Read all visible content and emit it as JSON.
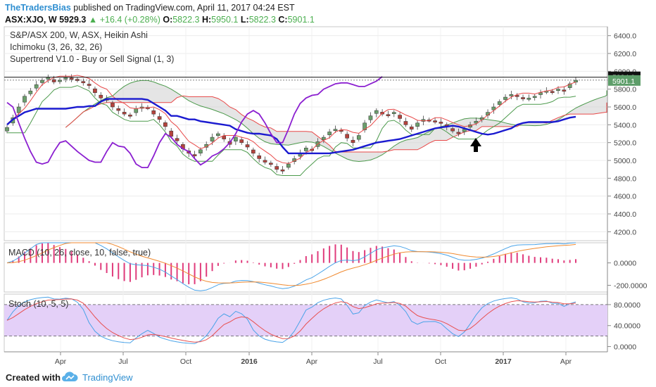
{
  "header": {
    "author": "TheTradersBias",
    "published": "published on TradingView.com, April 11, 2017 04:24 EST",
    "symbol": "ASX:XJO, W",
    "last": "5929.3",
    "arrow": "▲",
    "change": "+16.4 (+0.28%)",
    "o_label": "O:",
    "o_value": "5822.3",
    "h_label": "H:",
    "h_value": "5950.1",
    "l_label": "L:",
    "l_value": "5822.3",
    "c_label": "C:",
    "c_value": "5901.1"
  },
  "legend": {
    "title": "S&P/ASX 200, W, ASX, Heikin Ashi",
    "ichimoku": "Ichimoku (3, 26, 32, 26)",
    "supertrend": "Supertrend V1.0 - Buy or Sell Signal (1, 3)",
    "macd": "MACD (10, 26, close, 10, false, true)",
    "stoch": "Stoch (10, 5, 5)"
  },
  "footer": {
    "created_with": "Created with",
    "brand": "TradingView"
  },
  "colors": {
    "up": "#6c9f6c",
    "down": "#b5433d",
    "kijun": "#1a1ad0",
    "chikou": "#8b1fd0",
    "tenkan_red": "#e84848",
    "span_green": "#4c9a4c",
    "cloud": "#d0d0d0",
    "macd_line": "#4aa3e8",
    "signal_line": "#f08a30",
    "hist": "#e03c7c",
    "stoch_k": "#4aa3e8",
    "stoch_d": "#e85050",
    "stoch_band": "#e4d0f8",
    "price_box": "#111111",
    "close_box": "#5e9e6a"
  },
  "chart_data": {
    "type": "candlestick",
    "x_ticks": [
      "Apr",
      "Jul",
      "Oct",
      "2016",
      "Apr",
      "Jul",
      "Oct",
      "2017",
      "Apr"
    ],
    "x_ticks_bold": [
      "2016",
      "2017"
    ],
    "price_axis": {
      "ticks": [
        4200,
        4400,
        4600,
        4800,
        5000,
        5200,
        5400,
        5600,
        5800,
        6000,
        6200,
        6400
      ],
      "range": [
        4100,
        6500
      ]
    },
    "price_labels": [
      "6400.0",
      "6200.0",
      "6000.0",
      "5800.0",
      "5600.0",
      "5400.0",
      "5200.0",
      "5000.0",
      "4800.0",
      "4600.0",
      "4400.0",
      "4200.0"
    ],
    "resistance_label": "5934.0",
    "resistance_value": 5934,
    "last_close_label": "5901.1",
    "last_close_value": 5901.1,
    "candles_close": [
      5370,
      5480,
      5600,
      5720,
      5780,
      5850,
      5900,
      5930,
      5880,
      5900,
      5930,
      5920,
      5900,
      5870,
      5840,
      5760,
      5700,
      5680,
      5600,
      5560,
      5520,
      5500,
      5580,
      5600,
      5590,
      5520,
      5460,
      5380,
      5270,
      5220,
      5130,
      5080,
      5050,
      5120,
      5180,
      5260,
      5300,
      5240,
      5180,
      5260,
      5200,
      5150,
      5080,
      5020,
      4980,
      4960,
      4900,
      4890,
      4960,
      5020,
      5080,
      5140,
      5110,
      5210,
      5260,
      5320,
      5350,
      5330,
      5250,
      5200,
      5280,
      5420,
      5500,
      5560,
      5520,
      5510,
      5540,
      5470,
      5400,
      5350,
      5420,
      5460,
      5450,
      5440,
      5420,
      5380,
      5330,
      5300,
      5350,
      5400,
      5440,
      5480,
      5540,
      5600,
      5660,
      5710,
      5740,
      5720,
      5690,
      5700,
      5720,
      5760,
      5780,
      5770,
      5800,
      5780,
      5860,
      5900
    ],
    "kijun": [
      5400,
      5460,
      5500,
      5540,
      5560,
      5580,
      5580,
      5580,
      5580,
      5580,
      5580,
      5590,
      5600,
      5600,
      5610,
      5610,
      5660,
      5690,
      5690,
      5690,
      5690,
      5690,
      5690,
      5690,
      5680,
      5640,
      5600,
      5560,
      5500,
      5500,
      5480,
      5460,
      5460,
      5440,
      5430,
      5420,
      5410,
      5400,
      5390,
      5350,
      5330,
      5310,
      5300,
      5300,
      5290,
      5280,
      5240,
      5150,
      5080,
      5080,
      5080,
      5080,
      5080,
      5080,
      5080,
      5080,
      5090,
      5100,
      5110,
      5120,
      5140,
      5160,
      5180,
      5200,
      5210,
      5220,
      5230,
      5240,
      5260,
      5280,
      5300,
      5320,
      5340,
      5360,
      5370,
      5380,
      5390,
      5380,
      5360,
      5340,
      5320,
      5300,
      5290,
      5300,
      5320,
      5340,
      5360,
      5400,
      5420,
      5430,
      5430,
      5430,
      5430,
      5430,
      5440,
      5460,
      5480,
      5490
    ],
    "chikou": [
      5650,
      5600,
      5420,
      5250,
      5100,
      4980,
      4960,
      4980,
      5100,
      5200,
      5220,
      5160,
      5100,
      5050,
      5000,
      4980,
      4980,
      5100,
      5200,
      5160,
      5150,
      5080,
      4960,
      4920,
      4920,
      5050,
      5200,
      5300,
      5260,
      5180,
      5130,
      5100,
      5020,
      4950,
      4990,
      5050,
      5080,
      5130,
      5200,
      5300,
      5430,
      5520,
      5560,
      5520,
      5420,
      5300,
      5200,
      5200,
      5350,
      5520,
      5640,
      5700,
      5730,
      5740,
      5800,
      5830,
      5860,
      5870,
      5870,
      5850,
      5830,
      5830,
      5860,
      5890,
      5940
    ],
    "macd": {
      "axis": [
        "0.0000",
        "-200.0000"
      ],
      "ticks": [
        0,
        -200
      ],
      "range": [
        -260,
        180
      ]
    },
    "stoch": {
      "axis": [
        "80.0000",
        "40.0000",
        "0.0000"
      ],
      "ticks": [
        80,
        40,
        0
      ],
      "range": [
        -10,
        100
      ],
      "band": [
        20,
        80
      ]
    }
  }
}
